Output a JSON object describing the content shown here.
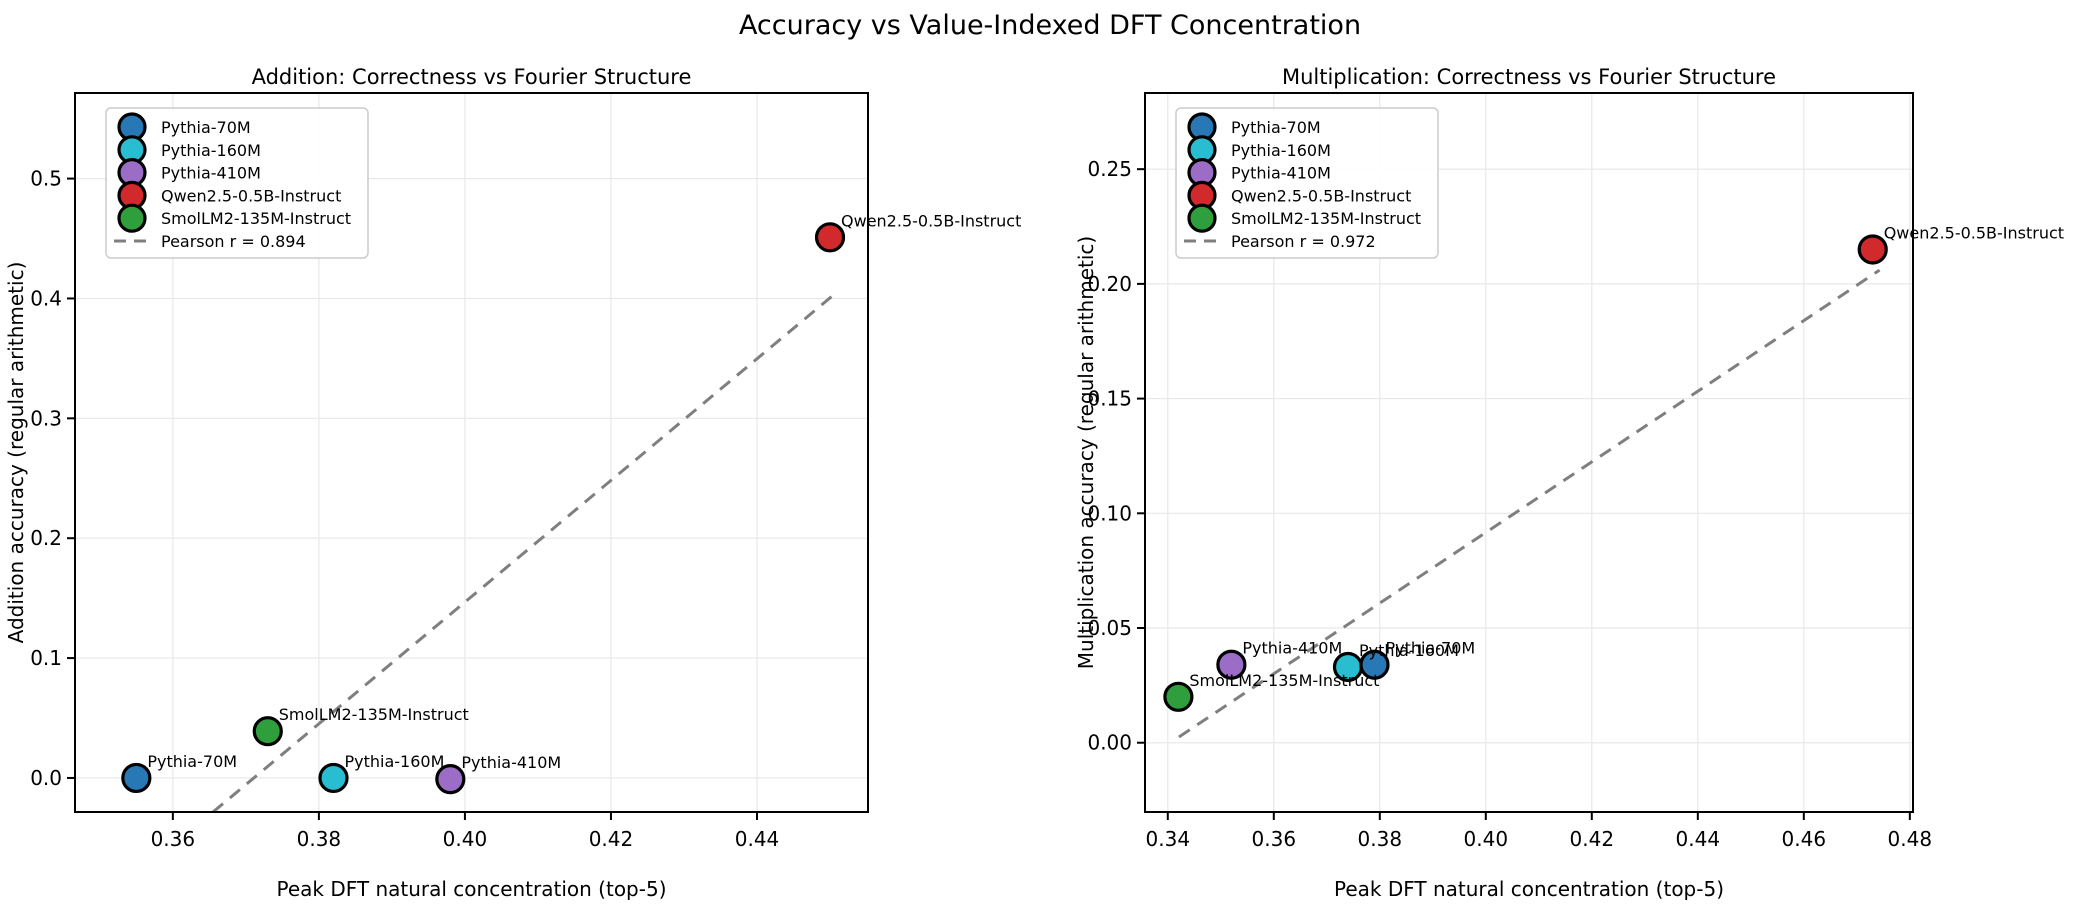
{
  "figure": {
    "suptitle": "Accuracy vs Value-Indexed DFT Concentration"
  },
  "models": [
    {
      "name": "Pythia-70M",
      "color": "#2878b5"
    },
    {
      "name": "Pythia-160M",
      "color": "#29bdd1"
    },
    {
      "name": "Pythia-410M",
      "color": "#9b6dc6"
    },
    {
      "name": "Qwen2.5-0.5B-Instruct",
      "color": "#d2292d"
    },
    {
      "name": "SmolLM2-135M-Instruct",
      "color": "#2f9e3c"
    }
  ],
  "style_colors": {
    "trend_line": "#7f7f7f",
    "grid": "#e8e8e8",
    "spine": "#000000",
    "legend_border": "#cccccc"
  },
  "chart_data": [
    {
      "id": "addition",
      "type": "scatter",
      "title": "Addition: Correctness vs Fourier Structure",
      "xlabel": "Peak DFT natural concentration (top-5)",
      "ylabel": "Addition accuracy (regular arithmetic)",
      "xlim": [
        0.3466,
        0.4552
      ],
      "ylim": [
        -0.0284,
        0.5714
      ],
      "xticks": [
        0.36,
        0.38,
        0.4,
        0.42,
        0.44
      ],
      "xtick_labels": [
        "0.36",
        "0.38",
        "0.40",
        "0.42",
        "0.44"
      ],
      "yticks": [
        0.0,
        0.1,
        0.2,
        0.3,
        0.4,
        0.5
      ],
      "ytick_labels": [
        "0.0",
        "0.1",
        "0.2",
        "0.3",
        "0.4",
        "0.5"
      ],
      "grid": true,
      "legend_position": "upper left",
      "pearson_r": 0.894,
      "pearson_r_label": "Pearson r = 0.894",
      "points": [
        {
          "model": "Pythia-70M",
          "x": 0.355,
          "y": 0.0
        },
        {
          "model": "Pythia-160M",
          "x": 0.382,
          "y": 0.0
        },
        {
          "model": "Pythia-410M",
          "x": 0.398,
          "y": -0.001
        },
        {
          "model": "SmolLM2-135M-Instruct",
          "x": 0.373,
          "y": 0.039
        },
        {
          "model": "Qwen2.5-0.5B-Instruct",
          "x": 0.45,
          "y": 0.451
        }
      ],
      "trend_line": {
        "x1": 0.3655,
        "y1": -0.0284,
        "x2": 0.4503,
        "y2": 0.402
      }
    },
    {
      "id": "multiplication",
      "type": "scatter",
      "title": "Multiplication: Correctness vs Fourier Structure",
      "xlabel": "Peak DFT natural concentration (top-5)",
      "ylabel": "Multiplication accuracy (regular arithmetic)",
      "xlim": [
        0.3357,
        0.4806
      ],
      "ylim": [
        -0.0302,
        0.2832
      ],
      "xticks": [
        0.34,
        0.36,
        0.38,
        0.4,
        0.42,
        0.44,
        0.46,
        0.48
      ],
      "xtick_labels": [
        "0.34",
        "0.36",
        "0.38",
        "0.40",
        "0.42",
        "0.44",
        "0.46",
        "0.48"
      ],
      "yticks": [
        0.0,
        0.05,
        0.1,
        0.15,
        0.2,
        0.25
      ],
      "ytick_labels": [
        "0.00",
        "0.05",
        "0.10",
        "0.15",
        "0.20",
        "0.25"
      ],
      "grid": true,
      "legend_position": "upper left",
      "pearson_r": 0.972,
      "pearson_r_label": "Pearson r = 0.972",
      "points": [
        {
          "model": "SmolLM2-135M-Instruct",
          "x": 0.342,
          "y": 0.02
        },
        {
          "model": "Pythia-410M",
          "x": 0.352,
          "y": 0.034
        },
        {
          "model": "Pythia-160M",
          "x": 0.374,
          "y": 0.033
        },
        {
          "model": "Pythia-70M",
          "x": 0.379,
          "y": 0.034
        },
        {
          "model": "Qwen2.5-0.5B-Instruct",
          "x": 0.473,
          "y": 0.215
        }
      ],
      "trend_line": {
        "x1": 0.3421,
        "y1": 0.0025,
        "x2": 0.4743,
        "y2": 0.206
      }
    }
  ]
}
